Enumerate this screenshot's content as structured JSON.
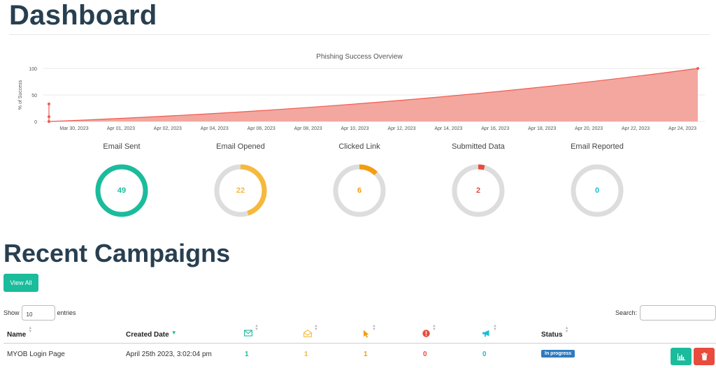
{
  "page": {
    "title": "Dashboard"
  },
  "chart_data": {
    "type": "area",
    "title": "Phishing Success Overview",
    "ylabel": "% of Success",
    "ylim": [
      0,
      100
    ],
    "yticks": [
      0,
      50,
      100
    ],
    "xtick_labels": [
      "Mar 30, 2023",
      "Apr 01, 2023",
      "Apr 02, 2023",
      "Apr 04, 2023",
      "Apr 06, 2023",
      "Apr 08, 2023",
      "Apr 10, 2023",
      "Apr 12, 2023",
      "Apr 14, 2023",
      "Apr 16, 2023",
      "Apr 18, 2023",
      "Apr 20, 2023",
      "Apr 22, 2023",
      "Apr 24, 2023"
    ],
    "color": "#f05b4f",
    "fill": "#f4a79f",
    "points": [
      {
        "x": "2023-03-28",
        "y": 0
      },
      {
        "x": "2023-03-28",
        "y": 9
      },
      {
        "x": "2023-03-28",
        "y": 33
      },
      {
        "x": "2023-04-25",
        "y": 100
      }
    ]
  },
  "stats": [
    {
      "label": "Email Sent",
      "value": "49",
      "fraction": 1.0,
      "color": "#1abc9c"
    },
    {
      "label": "Email Opened",
      "value": "22",
      "fraction": 0.449,
      "color": "#f6b93b"
    },
    {
      "label": "Clicked Link",
      "value": "6",
      "fraction": 0.122,
      "color": "#f39c12"
    },
    {
      "label": "Submitted Data",
      "value": "2",
      "fraction": 0.041,
      "color": "#e74c3c"
    },
    {
      "label": "Email Reported",
      "value": "0",
      "fraction": 0.0,
      "color": "#17c0d6"
    }
  ],
  "recent": {
    "title": "Recent Campaigns",
    "view_all": "View All",
    "show_label": "Show",
    "entries_value": "10",
    "entries_label": "entries",
    "search_label": "Search:",
    "columns": {
      "name": "Name",
      "created": "Created Date",
      "status": "Status"
    },
    "icons": {
      "sent": "envelope-icon",
      "opened": "envelope-open-icon",
      "clicked": "cursor-icon",
      "submitted": "exclamation-icon",
      "reported": "bullhorn-icon"
    },
    "rows": [
      {
        "name": "MYOB Login Page",
        "created": "April 25th 2023, 3:02:04 pm",
        "sent": "1",
        "opened": "1",
        "clicked": "1",
        "submitted": "0",
        "reported": "0",
        "status": "In progress"
      }
    ]
  },
  "colors": {
    "accent": "#1abc9c",
    "danger": "#e74c3c",
    "status_blue": "#2e7bbf",
    "title": "#283f50"
  }
}
